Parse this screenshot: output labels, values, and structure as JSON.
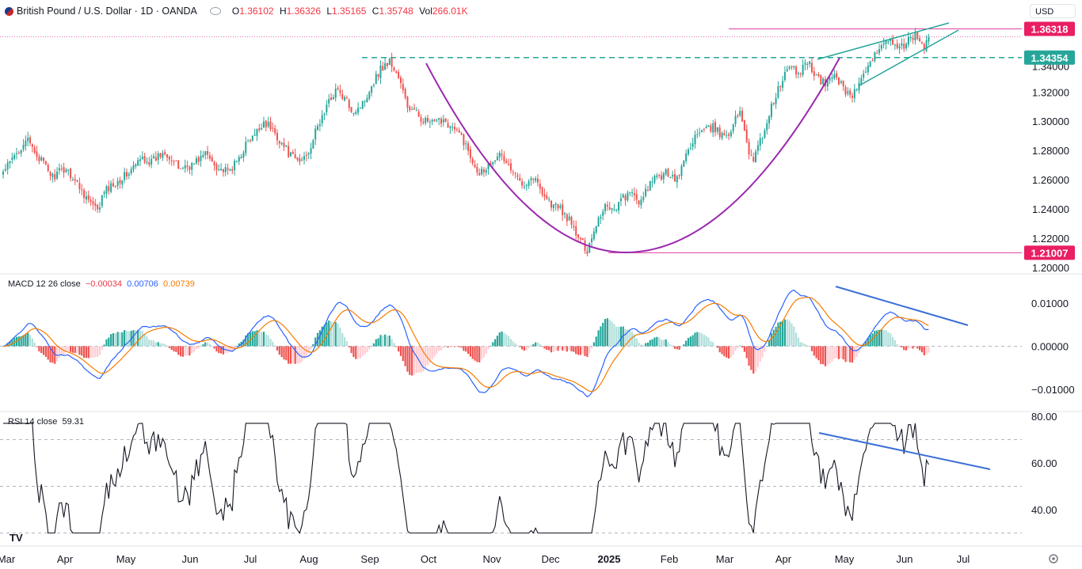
{
  "header": {
    "symbol_title": "British Pound / U.S. Dollar · 1D · OANDA",
    "ohlc": [
      {
        "k": "O",
        "v": "1.36102"
      },
      {
        "k": "H",
        "v": "1.36326"
      },
      {
        "k": "L",
        "v": "1.35165"
      },
      {
        "k": "C",
        "v": "1.35748"
      },
      {
        "k": "Vol",
        "v": "266.01K"
      }
    ],
    "currency": "USD"
  },
  "colors": {
    "up": "#26a69a",
    "down": "#ef5350",
    "cup_curve": "#9c27b0",
    "level_line": "#e040a0",
    "support_dash": "#26a69a",
    "wedge": "#26a69a",
    "trendline": "#3b6fd8",
    "macd_line": "#2962ff",
    "signal_line": "#f57c00",
    "rsi_line": "#131722",
    "tag_bg_pink": "#e91e63",
    "tag_bg_green": "#26a69a"
  },
  "chart_data": [
    {
      "type": "candlestick",
      "title": "British Pound / U.S. Dollar · 1D · OANDA",
      "y_ticks": [
        "1.20000",
        "1.22000",
        "1.24000",
        "1.26000",
        "1.28000",
        "1.30000",
        "1.32000"
      ],
      "ylim": [
        1.195,
        1.37
      ],
      "price_tags": [
        {
          "label": "1.36318",
          "value": 1.36318,
          "color": "pink"
        },
        {
          "label": "1.34354",
          "value": 1.34354,
          "color": "green"
        },
        {
          "label": "1.21007",
          "value": 1.21007,
          "color": "pink"
        }
      ],
      "x_labels": [
        "Mar",
        "Apr",
        "May",
        "Jun",
        "Jul",
        "Aug",
        "Sep",
        "Oct",
        "Nov",
        "Dec",
        "2025",
        "Feb",
        "Mar",
        "Apr",
        "May",
        "Jun",
        "Jul"
      ],
      "close_path": [
        [
          0,
          1.265
        ],
        [
          6,
          1.278
        ],
        [
          10,
          1.288
        ],
        [
          16,
          1.275
        ],
        [
          22,
          1.262
        ],
        [
          28,
          1.268
        ],
        [
          34,
          1.255
        ],
        [
          38,
          1.246
        ],
        [
          42,
          1.238
        ],
        [
          45,
          1.252
        ],
        [
          50,
          1.258
        ],
        [
          56,
          1.265
        ],
        [
          62,
          1.275
        ],
        [
          66,
          1.272
        ],
        [
          72,
          1.28
        ],
        [
          78,
          1.268
        ],
        [
          84,
          1.27
        ],
        [
          90,
          1.278
        ],
        [
          96,
          1.268
        ],
        [
          100,
          1.265
        ],
        [
          104,
          1.272
        ],
        [
          108,
          1.284
        ],
        [
          112,
          1.29
        ],
        [
          116,
          1.3
        ],
        [
          120,
          1.294
        ],
        [
          124,
          1.285
        ],
        [
          128,
          1.276
        ],
        [
          132,
          1.272
        ],
        [
          136,
          1.28
        ],
        [
          140,
          1.296
        ],
        [
          144,
          1.31
        ],
        [
          148,
          1.322
        ],
        [
          152,
          1.315
        ],
        [
          156,
          1.307
        ],
        [
          160,
          1.312
        ],
        [
          164,
          1.325
        ],
        [
          168,
          1.336
        ],
        [
          172,
          1.341
        ],
        [
          176,
          1.33
        ],
        [
          180,
          1.31
        ],
        [
          184,
          1.305
        ],
        [
          188,
          1.3
        ],
        [
          192,
          1.298
        ],
        [
          196,
          1.302
        ],
        [
          200,
          1.295
        ],
        [
          204,
          1.29
        ],
        [
          208,
          1.276
        ],
        [
          212,
          1.265
        ],
        [
          216,
          1.27
        ],
        [
          220,
          1.278
        ],
        [
          224,
          1.272
        ],
        [
          228,
          1.262
        ],
        [
          232,
          1.258
        ],
        [
          236,
          1.262
        ],
        [
          240,
          1.252
        ],
        [
          244,
          1.243
        ],
        [
          248,
          1.24
        ],
        [
          252,
          1.232
        ],
        [
          256,
          1.22
        ],
        [
          260,
          1.212
        ],
        [
          264,
          1.23
        ],
        [
          268,
          1.243
        ],
        [
          272,
          1.24
        ],
        [
          276,
          1.248
        ],
        [
          280,
          1.25
        ],
        [
          284,
          1.244
        ],
        [
          288,
          1.258
        ],
        [
          292,
          1.262
        ],
        [
          296,
          1.265
        ],
        [
          300,
          1.26
        ],
        [
          304,
          1.277
        ],
        [
          308,
          1.29
        ],
        [
          312,
          1.293
        ],
        [
          316,
          1.296
        ],
        [
          320,
          1.29
        ],
        [
          324,
          1.294
        ],
        [
          328,
          1.308
        ],
        [
          332,
          1.28
        ],
        [
          334,
          1.274
        ],
        [
          338,
          1.29
        ],
        [
          342,
          1.31
        ],
        [
          346,
          1.325
        ],
        [
          350,
          1.338
        ],
        [
          354,
          1.332
        ],
        [
          358,
          1.342
        ],
        [
          362,
          1.33
        ],
        [
          366,
          1.325
        ],
        [
          370,
          1.333
        ],
        [
          374,
          1.322
        ],
        [
          378,
          1.318
        ],
        [
          382,
          1.328
        ],
        [
          386,
          1.338
        ],
        [
          390,
          1.352
        ],
        [
          394,
          1.357
        ],
        [
          398,
          1.348
        ],
        [
          402,
          1.354
        ],
        [
          406,
          1.358
        ],
        [
          410,
          1.352
        ],
        [
          412,
          1.357
        ]
      ],
      "annotations": [
        "cup curve",
        "rising wedge",
        "support 1.34354",
        "resistance 1.36318",
        "low 1.21007"
      ]
    },
    {
      "type": "line",
      "title": "MACD 12 26 close",
      "values_text": [
        "−0.00034",
        "0.00706",
        "0.00739"
      ],
      "series": [
        {
          "name": "MACD",
          "color": "#2962ff"
        },
        {
          "name": "Signal",
          "color": "#f57c00"
        }
      ],
      "y_ticks": [
        "0.01000",
        "0.00000",
        "−0.01000"
      ],
      "ylim": [
        -0.0145,
        0.0125
      ],
      "histogram_note": "histogram = MACD − signal"
    },
    {
      "type": "line",
      "title": "RSI 14 close",
      "values_text": [
        "59.31"
      ],
      "y_ticks": [
        "80.00",
        "60.00",
        "40.00"
      ],
      "ylim": [
        27,
        80
      ],
      "bands": [
        30,
        50,
        70
      ]
    }
  ]
}
